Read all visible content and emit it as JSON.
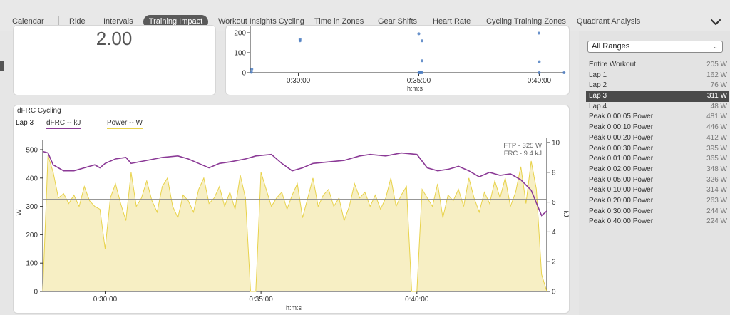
{
  "tabs": [
    {
      "label": "Calendar",
      "active": false
    },
    {
      "label": "Ride",
      "active": false
    },
    {
      "label": "Intervals",
      "active": false
    },
    {
      "label": "Training Impact",
      "active": true
    },
    {
      "label": "Workout Insights Cycling",
      "active": false
    },
    {
      "label": "Time in Zones",
      "active": false
    },
    {
      "label": "Gear Shifts",
      "active": false
    },
    {
      "label": "Heart Rate",
      "active": false
    },
    {
      "label": "Cycling Training Zones",
      "active": false
    },
    {
      "label": "Quadrant Analysis",
      "active": false
    }
  ],
  "metric_panel": {
    "value": "2.00"
  },
  "scatter_panel": {
    "yticks": [
      "0",
      "100",
      "200"
    ],
    "xticks": [
      "0:30:00",
      "0:35:00",
      "0:40:00"
    ],
    "xlabel": "h:m:s"
  },
  "dfrc_panel": {
    "title": "dFRC Cycling",
    "lap": "Lap 3",
    "legend_dfrc": "dFRC  -- kJ",
    "legend_power": "Power  -- W",
    "ftp_label": "FTP - 325 W",
    "frc_label": "FRC - 9.4 kJ",
    "ylabel_left": "W",
    "ylabel_right": "kJ",
    "xlabel": "h:m:s",
    "colors": {
      "dfrc": "#8b3a96",
      "power": "#e8d24a",
      "power_fill": "#f7efc4",
      "ftp_line": "#888888"
    }
  },
  "chart_data": [
    {
      "type": "scatter",
      "title": "",
      "xlabel": "h:m:s",
      "ylabel": "",
      "x_range_s": [
        1680,
        2465
      ],
      "ylim": [
        0,
        200
      ],
      "points_x": [
        "0:28:00",
        "0:28:00",
        "0:31:00",
        "0:31:00",
        "0:35:00",
        "0:35:00",
        "0:35:00",
        "0:35:00",
        "0:35:00",
        "0:35:00",
        "0:35:00",
        "0:35:00",
        "0:40:00",
        "0:40:00",
        "0:40:00",
        "0:44:00"
      ],
      "points": [
        [
          1683,
          2
        ],
        [
          1684,
          18
        ],
        [
          1804,
          160
        ],
        [
          1804,
          168
        ],
        [
          2100,
          0
        ],
        [
          2102,
          1
        ],
        [
          2104,
          0
        ],
        [
          2106,
          2
        ],
        [
          2108,
          0
        ],
        [
          2100,
          195
        ],
        [
          2108,
          160
        ],
        [
          2108,
          60
        ],
        [
          2400,
          0
        ],
        [
          2400,
          55
        ],
        [
          2399,
          198
        ],
        [
          2462,
          0
        ]
      ]
    },
    {
      "type": "line",
      "title": "dFRC Cycling",
      "xlabel": "h:m:s",
      "ylabel": "W",
      "y2label": "kJ",
      "x_range": [
        "0:28:00",
        "0:44:10"
      ],
      "x_range_s": [
        1680,
        2650
      ],
      "ylim": [
        0,
        500
      ],
      "y2lim": [
        0,
        10
      ],
      "xticks": [
        "0:30:00",
        "0:35:00",
        "0:40:00"
      ],
      "yticks": [
        0,
        100,
        200,
        300,
        400,
        500
      ],
      "y2ticks": [
        0,
        2,
        4,
        6,
        8,
        10
      ],
      "ftp_w": 325,
      "frc_kj": 9.4,
      "series": [
        {
          "name": "dFRC  -- kJ",
          "axis": "right",
          "x_s": [
            1680,
            1690,
            1700,
            1720,
            1740,
            1760,
            1780,
            1790,
            1800,
            1820,
            1840,
            1850,
            1880,
            1910,
            1940,
            1960,
            1980,
            2000,
            2020,
            2040,
            2070,
            2090,
            2120,
            2140,
            2160,
            2180,
            2200,
            2230,
            2260,
            2280,
            2290,
            2310,
            2340,
            2370,
            2400,
            2420,
            2440,
            2460,
            2480,
            2500,
            2520,
            2540,
            2560,
            2580,
            2600,
            2620,
            2640,
            2650
          ],
          "values": [
            9.4,
            9.3,
            8.5,
            8.1,
            8.1,
            8.3,
            8.5,
            8.3,
            8.6,
            8.9,
            9.0,
            8.6,
            8.8,
            9.0,
            9.1,
            8.9,
            8.6,
            8.3,
            8.6,
            8.7,
            8.9,
            9.1,
            9.2,
            8.6,
            8.1,
            8.3,
            8.6,
            8.7,
            8.8,
            9.0,
            9.1,
            9.2,
            9.1,
            9.3,
            9.2,
            8.3,
            8.1,
            8.2,
            8.4,
            8.1,
            7.7,
            8.0,
            7.8,
            7.9,
            7.5,
            6.8,
            5.1,
            5.4
          ]
        },
        {
          "name": "Power  -- W",
          "axis": "left",
          "approximate": true,
          "x_s": [
            1680,
            1690,
            1700,
            1710,
            1720,
            1730,
            1740,
            1750,
            1760,
            1770,
            1780,
            1790,
            1800,
            1810,
            1820,
            1830,
            1840,
            1850,
            1860,
            1870,
            1880,
            1890,
            1900,
            1910,
            1920,
            1930,
            1940,
            1950,
            1960,
            1970,
            1980,
            1990,
            2000,
            2010,
            2020,
            2030,
            2040,
            2050,
            2060,
            2070,
            2080,
            2090,
            2100,
            2110,
            2120,
            2130,
            2140,
            2150,
            2160,
            2170,
            2180,
            2190,
            2200,
            2210,
            2220,
            2230,
            2240,
            2250,
            2260,
            2270,
            2280,
            2290,
            2300,
            2310,
            2320,
            2330,
            2340,
            2350,
            2360,
            2370,
            2380,
            2390,
            2400,
            2410,
            2420,
            2430,
            2440,
            2450,
            2460,
            2470,
            2480,
            2490,
            2500,
            2510,
            2520,
            2530,
            2540,
            2550,
            2560,
            2570,
            2580,
            2590,
            2600,
            2610,
            2620,
            2630,
            2640,
            2650
          ],
          "values": [
            0,
            480,
            420,
            330,
            345,
            310,
            340,
            300,
            370,
            320,
            300,
            290,
            150,
            330,
            380,
            310,
            250,
            420,
            300,
            330,
            390,
            320,
            280,
            370,
            400,
            300,
            260,
            340,
            320,
            280,
            360,
            400,
            310,
            330,
            370,
            300,
            350,
            290,
            410,
            330,
            0,
            0,
            420,
            360,
            300,
            330,
            350,
            290,
            340,
            380,
            260,
            330,
            400,
            300,
            340,
            360,
            300,
            330,
            250,
            300,
            380,
            330,
            350,
            300,
            340,
            290,
            330,
            400,
            300,
            340,
            370,
            0,
            0,
            360,
            330,
            300,
            380,
            260,
            340,
            320,
            360,
            300,
            400,
            330,
            280,
            350,
            310,
            390,
            330,
            400,
            300,
            350,
            440,
            310,
            460,
            360,
            60,
            0
          ]
        }
      ]
    }
  ],
  "sidebar": {
    "selector": "All Ranges",
    "selected_index": 3,
    "ranges": [
      {
        "label": "Entire Workout",
        "value": "205 W"
      },
      {
        "label": "Lap 1",
        "value": "162 W"
      },
      {
        "label": "Lap 2",
        "value": "76 W"
      },
      {
        "label": "Lap 3",
        "value": "311 W"
      },
      {
        "label": "Lap 4",
        "value": "48 W"
      },
      {
        "label": "Peak 0:00:05 Power",
        "value": "481 W"
      },
      {
        "label": "Peak 0:00:10 Power",
        "value": "446 W"
      },
      {
        "label": "Peak 0:00:20 Power",
        "value": "412 W"
      },
      {
        "label": "Peak 0:00:30 Power",
        "value": "395 W"
      },
      {
        "label": "Peak 0:01:00 Power",
        "value": "365 W"
      },
      {
        "label": "Peak 0:02:00 Power",
        "value": "348 W"
      },
      {
        "label": "Peak 0:05:00 Power",
        "value": "326 W"
      },
      {
        "label": "Peak 0:10:00 Power",
        "value": "314 W"
      },
      {
        "label": "Peak 0:20:00 Power",
        "value": "263 W"
      },
      {
        "label": "Peak 0:30:00 Power",
        "value": "244 W"
      },
      {
        "label": "Peak 0:40:00 Power",
        "value": "224 W"
      }
    ]
  }
}
